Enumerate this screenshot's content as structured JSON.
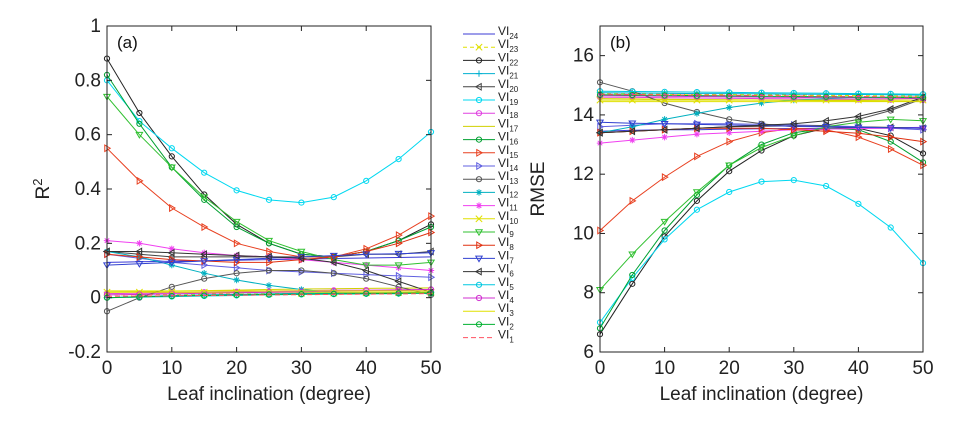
{
  "chart_data": [
    {
      "type": "line",
      "panel_label": "(a)",
      "xlabel": "Leaf inclination (degree)",
      "ylabel_main": "R",
      "ylabel_sup": "2",
      "xlim": [
        0,
        50
      ],
      "ylim": [
        -0.2,
        1
      ],
      "xticks": [
        "0",
        "10",
        "20",
        "30",
        "40",
        "50"
      ],
      "yticks": [
        "-0.2",
        "0",
        "0.2",
        "0.4",
        "0.6",
        "0.8",
        "1"
      ],
      "x": [
        0,
        5,
        10,
        15,
        20,
        25,
        30,
        35,
        40,
        45,
        50
      ],
      "series": [
        {
          "name": "VI24",
          "color": "#3b3bd6",
          "marker": "none",
          "dash": "",
          "values": [
            0.13,
            0.132,
            0.134,
            0.136,
            0.138,
            0.14,
            0.142,
            0.144,
            0.146,
            0.148,
            0.15
          ]
        },
        {
          "name": "VI23",
          "color": "#e0e000",
          "marker": "x",
          "dash": "4 3",
          "values": [
            0.01,
            0.011,
            0.012,
            0.013,
            0.014,
            0.015,
            0.016,
            0.017,
            0.018,
            0.019,
            0.02
          ]
        },
        {
          "name": "VI22",
          "color": "#222222",
          "marker": "o",
          "dash": "",
          "values": [
            0.88,
            0.68,
            0.52,
            0.38,
            0.27,
            0.2,
            0.16,
            0.15,
            0.17,
            0.21,
            0.27
          ]
        },
        {
          "name": "VI21",
          "color": "#00b0d0",
          "marker": "plus",
          "dash": "",
          "values": [
            0.0,
            0.004,
            0.008,
            0.01,
            0.012,
            0.014,
            0.016,
            0.017,
            0.018,
            0.019,
            0.02
          ]
        },
        {
          "name": "VI20",
          "color": "#444444",
          "marker": "trileft",
          "dash": "",
          "values": [
            0.17,
            0.16,
            0.15,
            0.15,
            0.15,
            0.15,
            0.15,
            0.15,
            0.16,
            0.16,
            0.17
          ]
        },
        {
          "name": "VI19",
          "color": "#00d8f0",
          "marker": "o",
          "dash": "",
          "values": [
            0.8,
            0.65,
            0.55,
            0.46,
            0.395,
            0.36,
            0.35,
            0.37,
            0.43,
            0.51,
            0.61
          ]
        },
        {
          "name": "VI18",
          "color": "#e040e0",
          "marker": "o",
          "dash": "",
          "values": [
            0.015,
            0.016,
            0.018,
            0.02,
            0.022,
            0.024,
            0.026,
            0.027,
            0.028,
            0.029,
            0.03
          ]
        },
        {
          "name": "VI17",
          "color": "#d0d000",
          "marker": "none",
          "dash": "",
          "values": [
            0.02,
            0.022,
            0.024,
            0.026,
            0.028,
            0.03,
            0.032,
            0.033,
            0.034,
            0.035,
            0.036
          ]
        },
        {
          "name": "VI16",
          "color": "#00a030",
          "marker": "o",
          "dash": "",
          "values": [
            0.82,
            0.64,
            0.48,
            0.36,
            0.26,
            0.2,
            0.16,
            0.15,
            0.17,
            0.21,
            0.26
          ]
        },
        {
          "name": "VI15",
          "color": "#e84020",
          "marker": "triright",
          "dash": "",
          "values": [
            0.55,
            0.43,
            0.33,
            0.26,
            0.2,
            0.17,
            0.15,
            0.15,
            0.18,
            0.23,
            0.3
          ]
        },
        {
          "name": "VI14",
          "color": "#6060e0",
          "marker": "triright",
          "dash": "",
          "values": [
            0.16,
            0.145,
            0.13,
            0.12,
            0.11,
            0.1,
            0.095,
            0.09,
            0.085,
            0.08,
            0.075
          ]
        },
        {
          "name": "VI13",
          "color": "#555555",
          "marker": "o",
          "dash": "",
          "values": [
            -0.05,
            0.0,
            0.04,
            0.07,
            0.09,
            0.1,
            0.1,
            0.09,
            0.07,
            0.04,
            0.01
          ]
        },
        {
          "name": "VI12",
          "color": "#00b0c0",
          "marker": "star",
          "dash": "",
          "values": [
            0.17,
            0.15,
            0.12,
            0.09,
            0.065,
            0.045,
            0.03,
            0.02,
            0.015,
            0.015,
            0.02
          ]
        },
        {
          "name": "VI11",
          "color": "#f040f0",
          "marker": "star",
          "dash": "",
          "values": [
            0.21,
            0.2,
            0.18,
            0.165,
            0.155,
            0.15,
            0.14,
            0.13,
            0.12,
            0.11,
            0.1
          ]
        },
        {
          "name": "VI10",
          "color": "#e0e000",
          "marker": "x",
          "dash": "",
          "values": [
            0.02,
            0.02,
            0.02,
            0.02,
            0.02,
            0.02,
            0.02,
            0.02,
            0.02,
            0.02,
            0.02
          ]
        },
        {
          "name": "VI9",
          "color": "#30c030",
          "marker": "tridown",
          "dash": "",
          "values": [
            0.74,
            0.6,
            0.48,
            0.37,
            0.28,
            0.21,
            0.17,
            0.14,
            0.12,
            0.12,
            0.13
          ]
        },
        {
          "name": "VI8",
          "color": "#e03010",
          "marker": "triright",
          "dash": "",
          "values": [
            0.16,
            0.15,
            0.14,
            0.135,
            0.13,
            0.13,
            0.14,
            0.15,
            0.17,
            0.2,
            0.24
          ]
        },
        {
          "name": "VI7",
          "color": "#3040d0",
          "marker": "tridown",
          "dash": "",
          "values": [
            0.12,
            0.125,
            0.13,
            0.135,
            0.14,
            0.145,
            0.15,
            0.155,
            0.16,
            0.162,
            0.165
          ]
        },
        {
          "name": "VI6",
          "color": "#333333",
          "marker": "trileft",
          "dash": "",
          "values": [
            0.17,
            0.17,
            0.165,
            0.16,
            0.155,
            0.15,
            0.145,
            0.13,
            0.1,
            0.06,
            0.02
          ]
        },
        {
          "name": "VI5",
          "color": "#00c8e0",
          "marker": "o",
          "dash": "",
          "values": [
            0.0,
            0.002,
            0.004,
            0.006,
            0.008,
            0.01,
            0.012,
            0.013,
            0.014,
            0.015,
            0.016
          ]
        },
        {
          "name": "VI4",
          "color": "#d030d0",
          "marker": "o",
          "dash": "",
          "values": [
            0.01,
            0.012,
            0.014,
            0.016,
            0.018,
            0.02,
            0.022,
            0.024,
            0.026,
            0.028,
            0.03
          ]
        },
        {
          "name": "VI3",
          "color": "#e0e000",
          "marker": "none",
          "dash": "",
          "values": [
            0.025,
            0.025,
            0.025,
            0.025,
            0.025,
            0.025,
            0.025,
            0.025,
            0.025,
            0.025,
            0.025
          ]
        },
        {
          "name": "VI2",
          "color": "#00b030",
          "marker": "o",
          "dash": "",
          "values": [
            0.0,
            0.003,
            0.006,
            0.008,
            0.01,
            0.012,
            0.013,
            0.014,
            0.015,
            0.016,
            0.017
          ]
        },
        {
          "name": "VI1",
          "color": "#ff5060",
          "marker": "none",
          "dash": "5 3",
          "values": [
            0.005,
            0.006,
            0.007,
            0.008,
            0.009,
            0.01,
            0.011,
            0.012,
            0.013,
            0.014,
            0.015
          ]
        }
      ]
    },
    {
      "type": "line",
      "panel_label": "(b)",
      "xlabel": "Leaf inclination (degree)",
      "ylabel": "RMSE",
      "xlim": [
        0,
        50
      ],
      "ylim": [
        6,
        17
      ],
      "xticks": [
        "0",
        "10",
        "20",
        "30",
        "40",
        "50"
      ],
      "yticks": [
        "6",
        "8",
        "10",
        "12",
        "14",
        "16"
      ],
      "x": [
        0,
        5,
        10,
        15,
        20,
        25,
        30,
        35,
        40,
        45,
        50
      ],
      "series": [
        {
          "name": "VI24",
          "color": "#3b3bd6",
          "marker": "none",
          "dash": "",
          "values": [
            13.45,
            13.48,
            13.5,
            13.5,
            13.52,
            13.53,
            13.54,
            13.55,
            13.56,
            13.57,
            13.58
          ]
        },
        {
          "name": "VI23",
          "color": "#e0e000",
          "marker": "x",
          "dash": "4 3",
          "values": [
            14.72,
            14.71,
            14.7,
            14.7,
            14.69,
            14.68,
            14.67,
            14.66,
            14.65,
            14.64,
            14.63
          ]
        },
        {
          "name": "VI22",
          "color": "#222222",
          "marker": "o",
          "dash": "",
          "values": [
            6.6,
            8.3,
            9.9,
            11.1,
            12.1,
            12.8,
            13.3,
            13.55,
            13.55,
            13.3,
            12.7
          ]
        },
        {
          "name": "VI21",
          "color": "#00b0d0",
          "marker": "plus",
          "dash": "",
          "values": [
            14.75,
            14.74,
            14.73,
            14.72,
            14.72,
            14.71,
            14.7,
            14.7,
            14.69,
            14.68,
            14.67
          ]
        },
        {
          "name": "VI20",
          "color": "#444444",
          "marker": "trileft",
          "dash": "",
          "values": [
            13.4,
            13.45,
            13.5,
            13.55,
            13.6,
            13.62,
            13.63,
            13.62,
            13.6,
            13.58,
            13.55
          ]
        },
        {
          "name": "VI19",
          "color": "#00d8f0",
          "marker": "o",
          "dash": "",
          "values": [
            7.0,
            8.5,
            9.8,
            10.8,
            11.4,
            11.75,
            11.8,
            11.6,
            11.0,
            10.2,
            9.0
          ]
        },
        {
          "name": "VI18",
          "color": "#e040e0",
          "marker": "o",
          "dash": "",
          "values": [
            14.6,
            14.59,
            14.58,
            14.57,
            14.56,
            14.55,
            14.54,
            14.53,
            14.52,
            14.51,
            14.5
          ]
        },
        {
          "name": "VI17",
          "color": "#d0d000",
          "marker": "none",
          "dash": "",
          "values": [
            14.55,
            14.54,
            14.53,
            14.52,
            14.51,
            14.5,
            14.49,
            14.48,
            14.47,
            14.46,
            14.45
          ]
        },
        {
          "name": "VI16",
          "color": "#00a030",
          "marker": "o",
          "dash": "",
          "values": [
            6.8,
            8.6,
            10.1,
            11.3,
            12.3,
            13.0,
            13.4,
            13.55,
            13.5,
            13.1,
            12.4
          ]
        },
        {
          "name": "VI15",
          "color": "#e84020",
          "marker": "triright",
          "dash": "",
          "values": [
            10.1,
            11.1,
            11.9,
            12.6,
            13.1,
            13.4,
            13.55,
            13.5,
            13.25,
            12.85,
            12.3
          ]
        },
        {
          "name": "VI14",
          "color": "#6060e0",
          "marker": "triright",
          "dash": "",
          "values": [
            13.6,
            13.65,
            13.7,
            13.7,
            13.7,
            13.68,
            13.66,
            13.64,
            13.6,
            13.55,
            13.5
          ]
        },
        {
          "name": "VI13",
          "color": "#555555",
          "marker": "o",
          "dash": "",
          "values": [
            15.1,
            14.8,
            14.4,
            14.1,
            13.85,
            13.7,
            13.6,
            13.65,
            13.85,
            14.15,
            14.55
          ]
        },
        {
          "name": "VI12",
          "color": "#00b0c0",
          "marker": "star",
          "dash": "",
          "values": [
            13.4,
            13.6,
            13.85,
            14.05,
            14.25,
            14.4,
            14.5,
            14.55,
            14.58,
            14.6,
            14.6
          ]
        },
        {
          "name": "VI11",
          "color": "#f040f0",
          "marker": "star",
          "dash": "",
          "values": [
            13.05,
            13.15,
            13.25,
            13.35,
            13.4,
            13.45,
            13.5,
            13.52,
            13.54,
            13.55,
            13.56
          ]
        },
        {
          "name": "VI10",
          "color": "#e0e000",
          "marker": "x",
          "dash": "",
          "values": [
            14.5,
            14.5,
            14.5,
            14.5,
            14.5,
            14.5,
            14.5,
            14.5,
            14.5,
            14.5,
            14.5
          ]
        },
        {
          "name": "VI9",
          "color": "#30c030",
          "marker": "tridown",
          "dash": "",
          "values": [
            8.1,
            9.3,
            10.4,
            11.4,
            12.3,
            12.9,
            13.3,
            13.6,
            13.75,
            13.85,
            13.8
          ]
        },
        {
          "name": "VI8",
          "color": "#e03010",
          "marker": "triright",
          "dash": "",
          "values": [
            13.4,
            13.45,
            13.5,
            13.55,
            13.55,
            13.55,
            13.5,
            13.45,
            13.38,
            13.25,
            13.1
          ]
        },
        {
          "name": "VI7",
          "color": "#3040d0",
          "marker": "tridown",
          "dash": "",
          "values": [
            13.75,
            13.72,
            13.7,
            13.68,
            13.66,
            13.64,
            13.62,
            13.6,
            13.58,
            13.56,
            13.55
          ]
        },
        {
          "name": "VI6",
          "color": "#333333",
          "marker": "trileft",
          "dash": "",
          "values": [
            13.4,
            13.45,
            13.5,
            13.55,
            13.6,
            13.65,
            13.7,
            13.8,
            13.95,
            14.2,
            14.6
          ]
        },
        {
          "name": "VI5",
          "color": "#00c8e0",
          "marker": "o",
          "dash": "",
          "values": [
            14.8,
            14.79,
            14.78,
            14.77,
            14.76,
            14.75,
            14.74,
            14.73,
            14.72,
            14.71,
            14.7
          ]
        },
        {
          "name": "VI4",
          "color": "#d030d0",
          "marker": "o",
          "dash": "",
          "values": [
            14.65,
            14.64,
            14.63,
            14.62,
            14.61,
            14.6,
            14.59,
            14.58,
            14.57,
            14.56,
            14.55
          ]
        },
        {
          "name": "VI3",
          "color": "#e0e000",
          "marker": "none",
          "dash": "",
          "values": [
            14.45,
            14.45,
            14.45,
            14.45,
            14.45,
            14.45,
            14.45,
            14.45,
            14.45,
            14.45,
            14.45
          ]
        },
        {
          "name": "VI2",
          "color": "#00b030",
          "marker": "o",
          "dash": "",
          "values": [
            14.68,
            14.67,
            14.66,
            14.65,
            14.64,
            14.63,
            14.62,
            14.61,
            14.6,
            14.59,
            14.58
          ]
        },
        {
          "name": "VI1",
          "color": "#ff5060",
          "marker": "none",
          "dash": "5 3",
          "values": [
            14.7,
            14.69,
            14.68,
            14.67,
            14.66,
            14.65,
            14.64,
            14.63,
            14.62,
            14.61,
            14.6
          ]
        }
      ]
    }
  ],
  "legend": [
    {
      "base": "VI",
      "sub": "24"
    },
    {
      "base": "VI",
      "sub": "23"
    },
    {
      "base": "VI",
      "sub": "22"
    },
    {
      "base": "VI",
      "sub": "21"
    },
    {
      "base": "VI",
      "sub": "20"
    },
    {
      "base": "VI",
      "sub": "19"
    },
    {
      "base": "VI",
      "sub": "18"
    },
    {
      "base": "VI",
      "sub": "17"
    },
    {
      "base": "VI",
      "sub": "16"
    },
    {
      "base": "VI",
      "sub": "15"
    },
    {
      "base": "VI",
      "sub": "14"
    },
    {
      "base": "VI",
      "sub": "13"
    },
    {
      "base": "VI",
      "sub": "12"
    },
    {
      "base": "VI",
      "sub": "11"
    },
    {
      "base": "VI",
      "sub": "10"
    },
    {
      "base": "VI",
      "sub": "9"
    },
    {
      "base": "VI",
      "sub": "8"
    },
    {
      "base": "VI",
      "sub": "7"
    },
    {
      "base": "VI",
      "sub": "6"
    },
    {
      "base": "VI",
      "sub": "5"
    },
    {
      "base": "VI",
      "sub": "4"
    },
    {
      "base": "VI",
      "sub": "3"
    },
    {
      "base": "VI",
      "sub": "2"
    },
    {
      "base": "VI",
      "sub": "1"
    }
  ]
}
